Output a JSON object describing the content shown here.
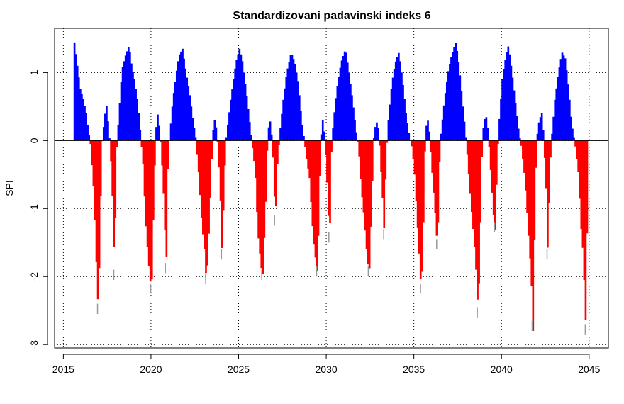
{
  "chart_data": {
    "type": "bar",
    "title": "Standardizovani padavinski indeks 6",
    "xlabel": "",
    "ylabel": "SPI",
    "xlim": [
      2014.5,
      2046.1
    ],
    "ylim": [
      -3.05,
      1.65
    ],
    "xticks": [
      2015,
      2020,
      2025,
      2030,
      2035,
      2040,
      2045
    ],
    "yticks": [
      -3,
      -2,
      -1,
      0,
      1
    ],
    "grid": true,
    "baseline": 0,
    "colors": {
      "positive": "#0000ff",
      "negative": "#ff0000",
      "tip": "#999999",
      "baseline": "#000000"
    },
    "start": 2015.5,
    "step": 0.08333333,
    "anchors": [
      [
        2015.5,
        0.0
      ],
      [
        2015.58,
        1.45
      ],
      [
        2015.75,
        1.1
      ],
      [
        2015.92,
        0.75
      ],
      [
        2016.1,
        0.6
      ],
      [
        2016.25,
        0.4
      ],
      [
        2016.4,
        0.1
      ],
      [
        2016.5,
        -0.05
      ],
      [
        2016.7,
        -0.8
      ],
      [
        2016.85,
        -1.9
      ],
      [
        2016.95,
        -2.55
      ],
      [
        2017.05,
        -1.2
      ],
      [
        2017.15,
        -0.05
      ],
      [
        2017.25,
        0.2
      ],
      [
        2017.4,
        0.55
      ],
      [
        2017.55,
        0.15
      ],
      [
        2017.65,
        -0.2
      ],
      [
        2017.78,
        -1.0
      ],
      [
        2017.88,
        -2.05
      ],
      [
        2017.95,
        -0.3
      ],
      [
        2018.1,
        0.3
      ],
      [
        2018.3,
        1.05
      ],
      [
        2018.5,
        1.25
      ],
      [
        2018.7,
        1.4
      ],
      [
        2018.85,
        1.1
      ],
      [
        2019.0,
        0.9
      ],
      [
        2019.2,
        0.55
      ],
      [
        2019.35,
        0.1
      ],
      [
        2019.5,
        -0.35
      ],
      [
        2019.65,
        -1.2
      ],
      [
        2019.8,
        -1.75
      ],
      [
        2019.98,
        -2.25
      ],
      [
        2020.1,
        -1.0
      ],
      [
        2020.2,
        -0.05
      ],
      [
        2020.3,
        0.45
      ],
      [
        2020.45,
        0.15
      ],
      [
        2020.55,
        -0.2
      ],
      [
        2020.72,
        -1.05
      ],
      [
        2020.82,
        -1.95
      ],
      [
        2020.9,
        -0.5
      ],
      [
        2021.0,
        0.0
      ],
      [
        2021.2,
        0.6
      ],
      [
        2021.4,
        1.0
      ],
      [
        2021.55,
        1.25
      ],
      [
        2021.75,
        1.35
      ],
      [
        2021.95,
        1.0
      ],
      [
        2022.15,
        0.7
      ],
      [
        2022.35,
        0.3
      ],
      [
        2022.5,
        0.05
      ],
      [
        2022.65,
        -0.4
      ],
      [
        2022.85,
        -1.2
      ],
      [
        2023.0,
        -1.6
      ],
      [
        2023.12,
        -2.1
      ],
      [
        2023.28,
        -1.2
      ],
      [
        2023.45,
        -0.05
      ],
      [
        2023.55,
        0.35
      ],
      [
        2023.7,
        0.15
      ],
      [
        2023.8,
        -0.2
      ],
      [
        2023.92,
        -0.9
      ],
      [
        2024.02,
        -1.75
      ],
      [
        2024.12,
        -0.6
      ],
      [
        2024.25,
        0.05
      ],
      [
        2024.5,
        0.6
      ],
      [
        2024.8,
        1.15
      ],
      [
        2025.0,
        1.35
      ],
      [
        2025.15,
        1.2
      ],
      [
        2025.35,
        0.8
      ],
      [
        2025.55,
        0.35
      ],
      [
        2025.7,
        0.0
      ],
      [
        2025.9,
        -0.45
      ],
      [
        2026.05,
        -1.35
      ],
      [
        2026.2,
        -1.75
      ],
      [
        2026.32,
        -2.05
      ],
      [
        2026.5,
        -0.9
      ],
      [
        2026.6,
        0.0
      ],
      [
        2026.72,
        0.35
      ],
      [
        2026.85,
        0.05
      ],
      [
        2026.95,
        -0.4
      ],
      [
        2027.05,
        -1.25
      ],
      [
        2027.15,
        -0.4
      ],
      [
        2027.3,
        0.1
      ],
      [
        2027.5,
        0.6
      ],
      [
        2027.7,
        1.0
      ],
      [
        2027.95,
        1.3
      ],
      [
        2028.15,
        1.15
      ],
      [
        2028.35,
        0.85
      ],
      [
        2028.55,
        0.3
      ],
      [
        2028.7,
        0.0
      ],
      [
        2028.85,
        -0.3
      ],
      [
        2029.0,
        -0.55
      ],
      [
        2029.2,
        -1.4
      ],
      [
        2029.45,
        -2.0
      ],
      [
        2029.55,
        -0.8
      ],
      [
        2029.65,
        0.05
      ],
      [
        2029.75,
        0.3
      ],
      [
        2029.85,
        0.1
      ],
      [
        2029.98,
        -0.5
      ],
      [
        2030.15,
        -1.5
      ],
      [
        2030.22,
        -0.3
      ],
      [
        2030.35,
        0.25
      ],
      [
        2030.55,
        0.75
      ],
      [
        2030.8,
        1.15
      ],
      [
        2031.05,
        1.35
      ],
      [
        2031.25,
        1.0
      ],
      [
        2031.45,
        0.6
      ],
      [
        2031.65,
        0.15
      ],
      [
        2031.8,
        -0.1
      ],
      [
        2031.95,
        -0.7
      ],
      [
        2032.1,
        -1.1
      ],
      [
        2032.25,
        -1.6
      ],
      [
        2032.4,
        -2.0
      ],
      [
        2032.55,
        -0.9
      ],
      [
        2032.65,
        0.0
      ],
      [
        2032.8,
        0.3
      ],
      [
        2032.95,
        0.15
      ],
      [
        2033.05,
        -0.3
      ],
      [
        2033.2,
        -1.0
      ],
      [
        2033.28,
        -1.45
      ],
      [
        2033.35,
        -0.3
      ],
      [
        2033.5,
        0.3
      ],
      [
        2033.7,
        0.85
      ],
      [
        2033.9,
        1.15
      ],
      [
        2034.1,
        1.3
      ],
      [
        2034.3,
        0.9
      ],
      [
        2034.5,
        0.4
      ],
      [
        2034.7,
        0.05
      ],
      [
        2034.85,
        -0.1
      ],
      [
        2035.0,
        -0.5
      ],
      [
        2035.15,
        -1.2
      ],
      [
        2035.28,
        -1.8
      ],
      [
        2035.38,
        -2.25
      ],
      [
        2035.5,
        -1.2
      ],
      [
        2035.6,
        0.05
      ],
      [
        2035.72,
        0.35
      ],
      [
        2035.85,
        0.1
      ],
      [
        2035.95,
        -0.3
      ],
      [
        2036.15,
        -1.0
      ],
      [
        2036.3,
        -1.6
      ],
      [
        2036.4,
        -0.4
      ],
      [
        2036.5,
        0.1
      ],
      [
        2036.7,
        0.6
      ],
      [
        2036.9,
        1.0
      ],
      [
        2037.1,
        1.25
      ],
      [
        2037.35,
        1.45
      ],
      [
        2037.55,
        1.05
      ],
      [
        2037.75,
        0.5
      ],
      [
        2037.9,
        0.1
      ],
      [
        2038.0,
        -0.2
      ],
      [
        2038.2,
        -0.9
      ],
      [
        2038.4,
        -1.5
      ],
      [
        2038.55,
        -2.1
      ],
      [
        2038.62,
        -2.6
      ],
      [
        2038.75,
        -1.2
      ],
      [
        2038.85,
        -0.05
      ],
      [
        2038.95,
        0.3
      ],
      [
        2039.1,
        0.35
      ],
      [
        2039.2,
        0.1
      ],
      [
        2039.35,
        -0.5
      ],
      [
        2039.5,
        -1.1
      ],
      [
        2039.6,
        -1.35
      ],
      [
        2039.7,
        -0.3
      ],
      [
        2039.8,
        0.2
      ],
      [
        2040.0,
        0.9
      ],
      [
        2040.2,
        1.25
      ],
      [
        2040.35,
        1.4
      ],
      [
        2040.55,
        1.0
      ],
      [
        2040.75,
        0.55
      ],
      [
        2040.95,
        0.1
      ],
      [
        2041.1,
        -0.1
      ],
      [
        2041.3,
        -0.6
      ],
      [
        2041.5,
        -1.4
      ],
      [
        2041.65,
        -2.0
      ],
      [
        2041.75,
        -2.8
      ],
      [
        2041.85,
        -1.2
      ],
      [
        2041.95,
        0.0
      ],
      [
        2042.1,
        0.3
      ],
      [
        2042.25,
        0.4
      ],
      [
        2042.35,
        0.1
      ],
      [
        2042.5,
        -0.7
      ],
      [
        2042.6,
        -1.75
      ],
      [
        2042.7,
        -0.5
      ],
      [
        2042.8,
        0.0
      ],
      [
        2043.0,
        0.6
      ],
      [
        2043.2,
        1.0
      ],
      [
        2043.4,
        1.3
      ],
      [
        2043.6,
        1.2
      ],
      [
        2043.8,
        0.7
      ],
      [
        2043.95,
        0.25
      ],
      [
        2044.15,
        -0.05
      ],
      [
        2044.35,
        -0.5
      ],
      [
        2044.5,
        -1.3
      ],
      [
        2044.62,
        -1.7
      ],
      [
        2044.7,
        -2.3
      ],
      [
        2044.78,
        -2.85
      ],
      [
        2044.85,
        -0.9
      ]
    ]
  }
}
